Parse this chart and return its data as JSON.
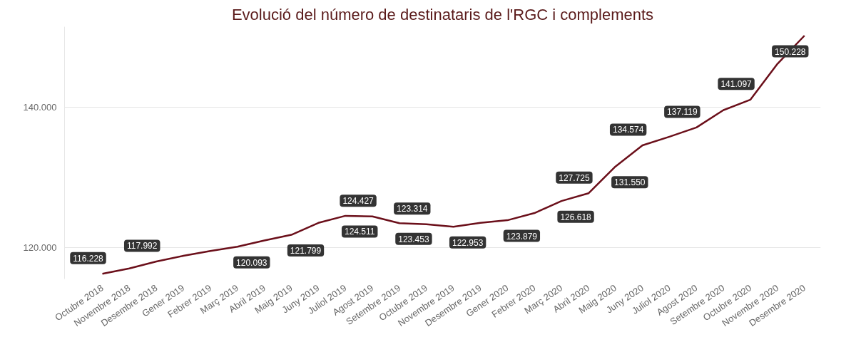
{
  "chart_data": {
    "type": "line",
    "title": "Evolució del número de destinataris de l'RGC i complements",
    "categories": [
      "Octubre 2018",
      "Novembre 2018",
      "Desembre 2018",
      "Gener 2019",
      "Febrer 2019",
      "Març 2019",
      "Abril 2019",
      "Maig 2019",
      "Juny 2019",
      "Juliol 2019",
      "Agost 2019",
      "Setembre 2019",
      "Octubre 2019",
      "Novembre 2019",
      "Desembre 2019",
      "Gener 2020",
      "Febrer 2020",
      "Març 2020",
      "Abril 2020",
      "Maig 2020",
      "Juny 2020",
      "Juliol 2020",
      "Agost 2020",
      "Setembre 2020",
      "Octubre 2020",
      "Novembre 2020",
      "Desembre 2020"
    ],
    "series": [
      {
        "color": "#6b0f1a",
        "values": [
          116228,
          117000,
          117992,
          118800,
          119500,
          120093,
          121000,
          121799,
          123500,
          124511,
          124427,
          123453,
          123314,
          122953,
          123500,
          123879,
          124900,
          126618,
          127725,
          131550,
          134574,
          135800,
          137119,
          139600,
          141097,
          146200,
          150228
        ],
        "value_labels": [
          "116.228",
          null,
          "117.992",
          null,
          null,
          "120.093",
          null,
          "121.799",
          null,
          "124.511",
          "124.427",
          "123.453",
          "123.314",
          "122.953",
          null,
          "123.879",
          null,
          "126.618",
          "127.725",
          "131.550",
          "134.574",
          null,
          "137.119",
          null,
          "141.097",
          null,
          "150.228"
        ]
      }
    ],
    "yticks": [
      {
        "value": 120000,
        "label": "120.000"
      },
      {
        "value": 140000,
        "label": "140.000"
      }
    ],
    "ylim": [
      115500,
      151500
    ],
    "grid": "y",
    "marker": "none",
    "line_style": "solid"
  }
}
